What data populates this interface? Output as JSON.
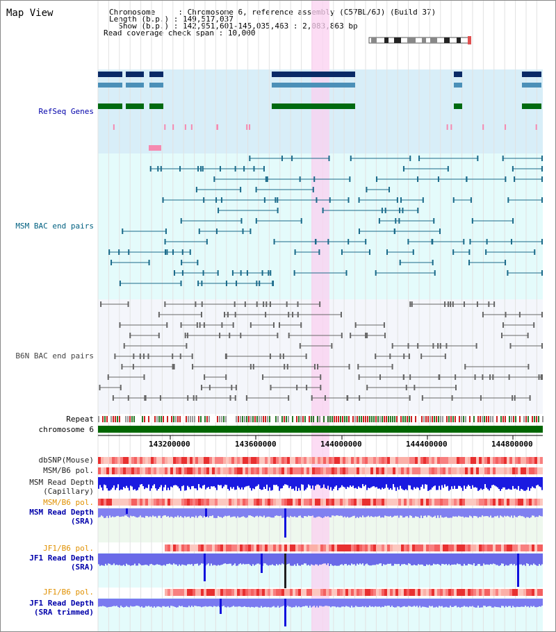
{
  "title": "Map View",
  "header": {
    "chromosome_label": "Chromosome     : ",
    "chromosome_value": "Chromosome 6, reference assembly (C57BL/6J) (Build 37)",
    "length_label": "Length (b.p.) : ",
    "length_value": "149,517,037",
    "show_label": "  Show (b.p.) : ",
    "show_value": "142,951,601-145,035,463 : 2,083,863 bp",
    "span_label": "Read coverage check span : ",
    "span_value": "10,000"
  },
  "tracks": {
    "refseq": "RefSeq Genes",
    "msm_bac": "MSM BAC end pairs",
    "b6n_bac": "B6N BAC end pairs",
    "repeat": "Repeat",
    "chromosome": "chromosome 6",
    "dbsnp": "dbSNP(Mouse)",
    "msm_b6_pol_1": "MSM/B6 pol.",
    "msm_depth_cap_1": "MSM Read Depth",
    "msm_depth_cap_2": "(Capillary)",
    "msm_b6_pol_2": "MSM/B6 pol.",
    "msm_depth_sra_1": "MSM Read Depth",
    "msm_depth_sra_2": "(SRA)",
    "jf1_pol_1": "JF1/B6 pol.",
    "jf1_depth_1": "JF1 Read Depth",
    "jf1_depth_2": "(SRA)",
    "jf1_pol_2": "JF1/B6 pol.",
    "jf1_trim_1": "JF1 Read Depth",
    "jf1_trim_2": "(SRA trimmed)"
  },
  "axis": {
    "ticks": [
      "143200000",
      "143600000",
      "144000000",
      "144400000",
      "144800000"
    ]
  },
  "colors": {
    "refseq_bg": "#d8eef8",
    "msm_bg": "#e4fbfb",
    "b6n_bg": "#f4f6fb",
    "highlight": "#fbd0f0",
    "refseq_label": "#0000aa",
    "msm_label": "#006080",
    "orange_label": "#e09000",
    "depth_blue": "#0000ff",
    "chrom_green": "#006600"
  }
}
